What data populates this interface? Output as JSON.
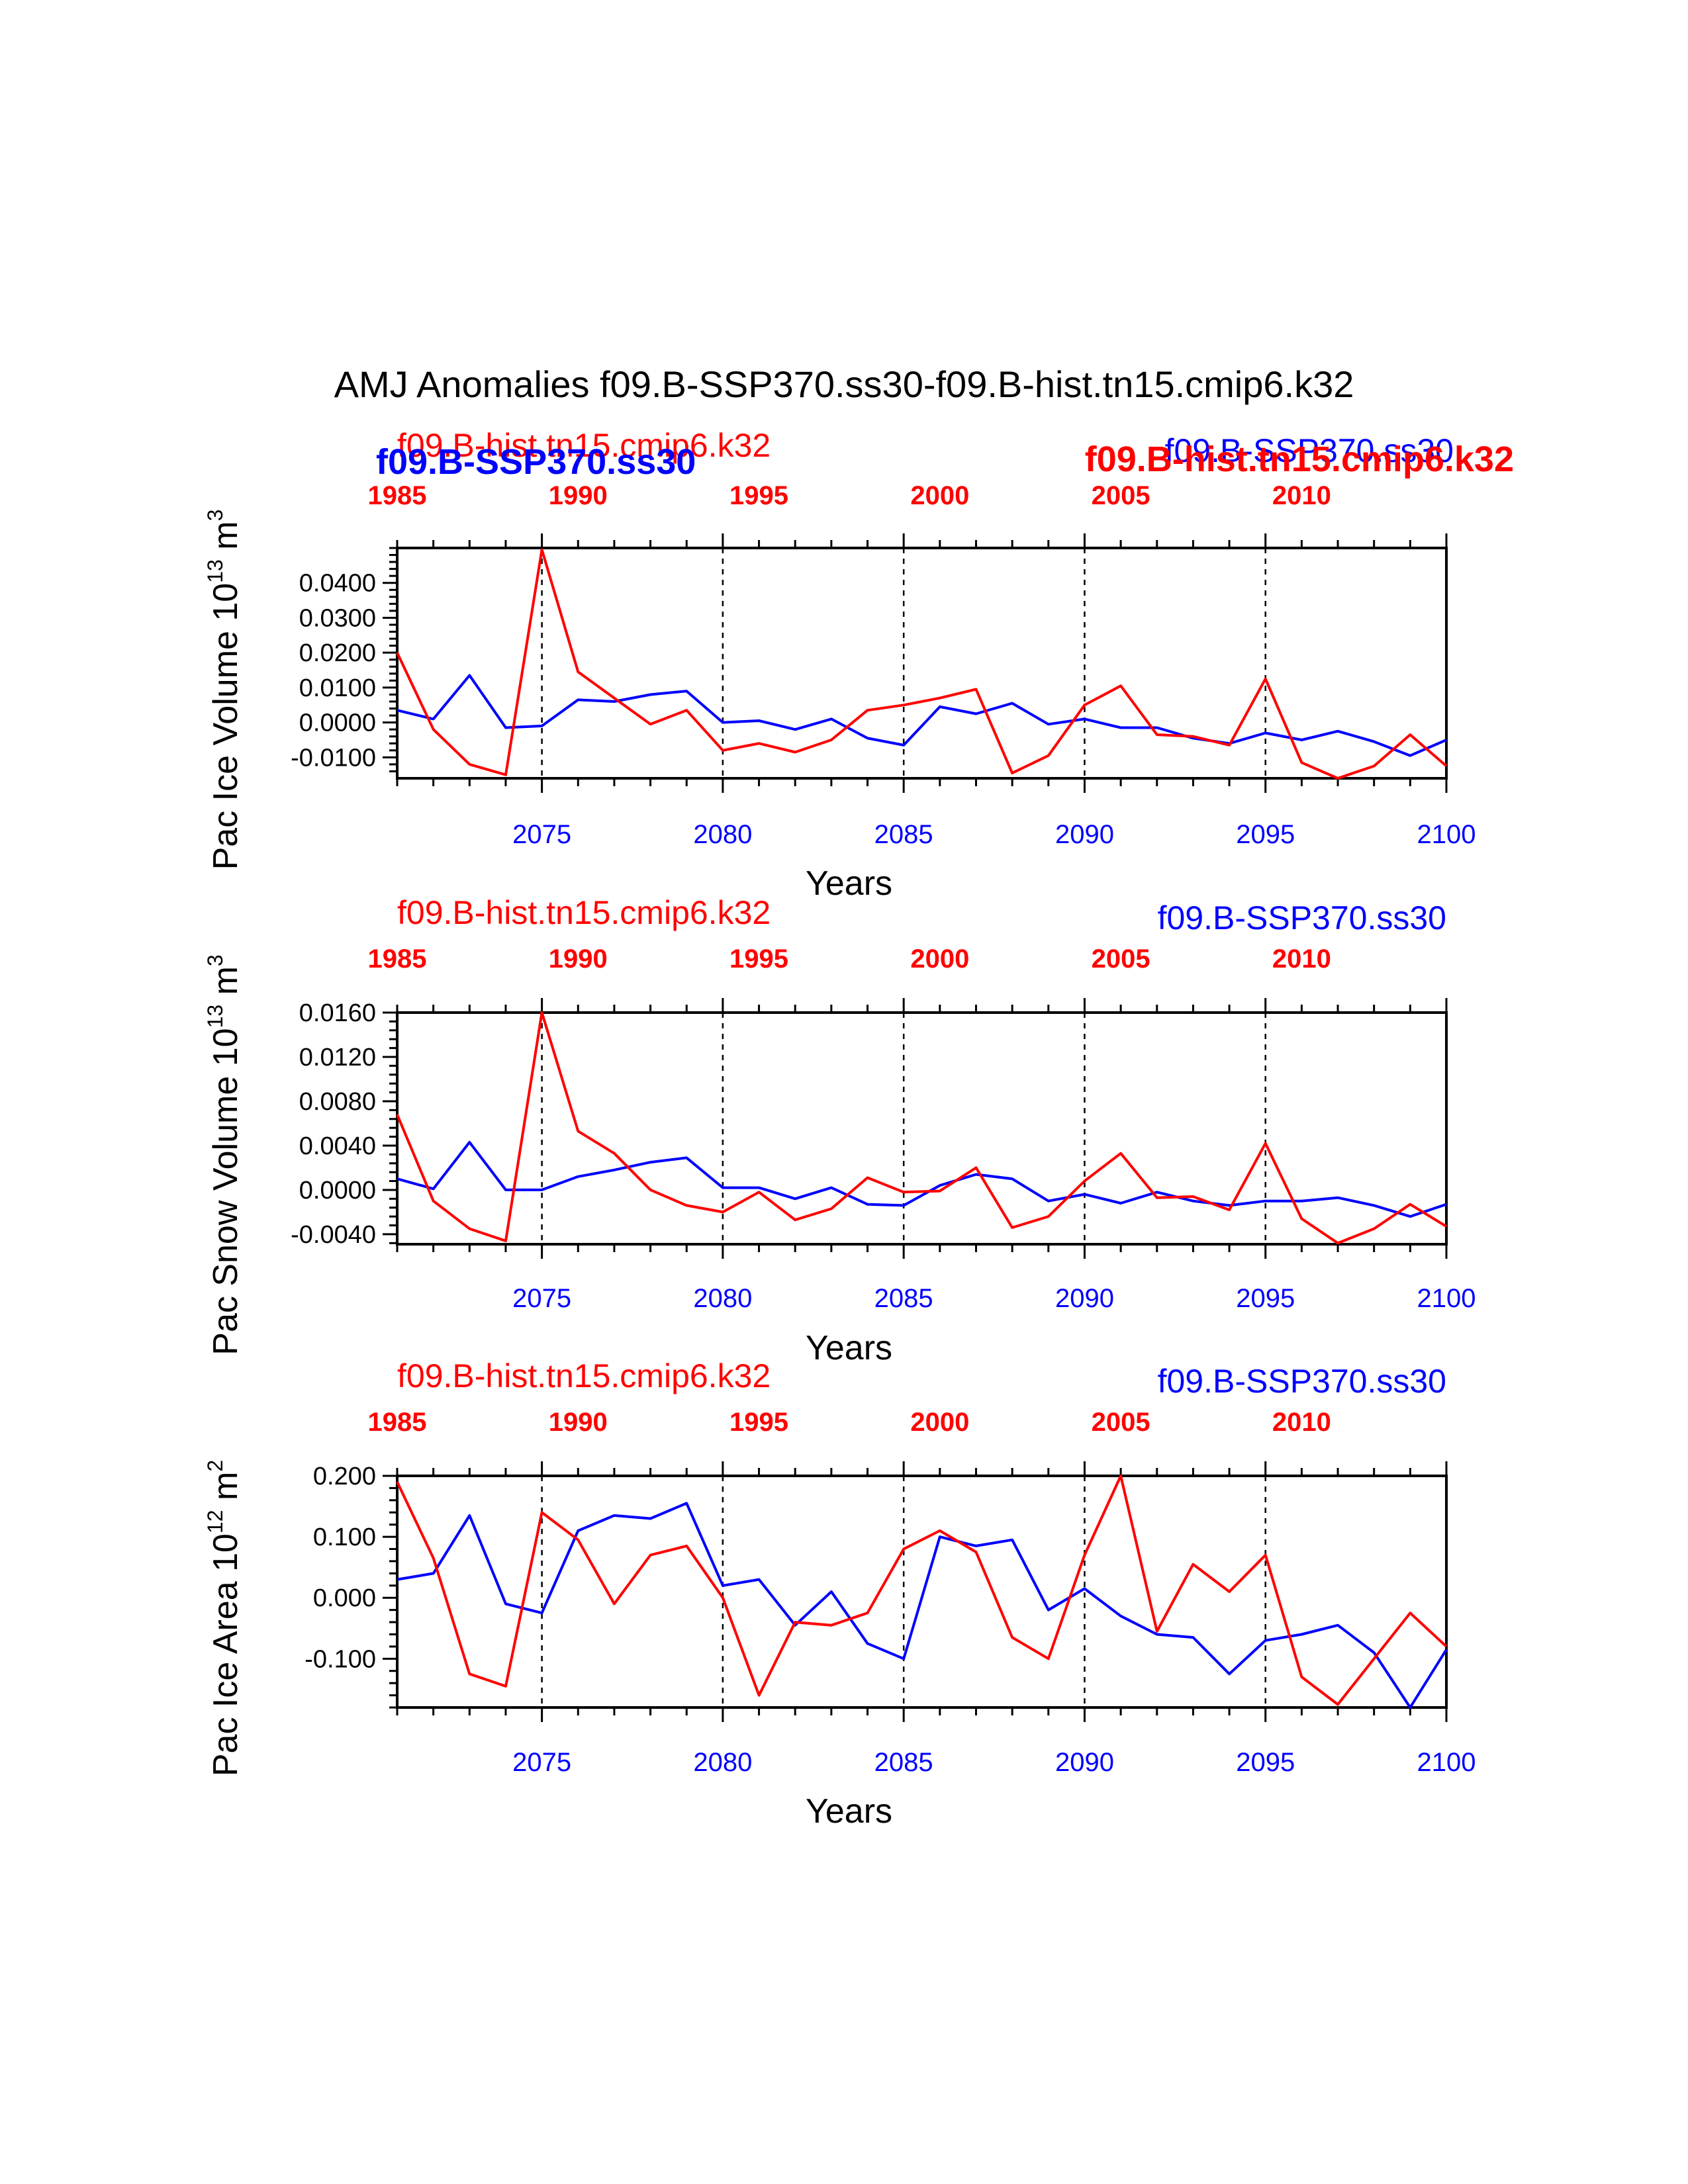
{
  "figure_title": "AMJ Anomalies f09.B-SSP370.ss30-f09.B-hist.tn15.cmip6.k32",
  "overlay_labels": {
    "left_red": "f09.B-hist.tn15.cmip6.k32",
    "left_blue": "f09.B-SSP370.ss30",
    "right_blue": "f09.B-SSP370.ss30",
    "right_red": "f09.B-hist.tn15.cmip6.k32"
  },
  "colors": {
    "ssp370": "#0000ff",
    "hist": "#ff0000",
    "axes": "#000000"
  },
  "chart_data": [
    {
      "type": "line",
      "legend_top_left": "f09.B-hist.tn15.cmip6.k32",
      "legend_top_right": "f09.B-SSP370.ss30",
      "xlabel": "Years",
      "ylabel": "Pac Ice Volume 10",
      "ylabel_exp": "13",
      "ylabel_unit": " m",
      "ylabel_unit_exp": "3",
      "xlim": [
        2071,
        2100
      ],
      "ylim": [
        -0.016,
        0.05
      ],
      "yticks": [
        "0.0400",
        "0.0300",
        "0.0200",
        "0.0100",
        "0.0000",
        "-0.0100"
      ],
      "yticks_values": [
        0.04,
        0.03,
        0.02,
        0.01,
        0.0,
        -0.01
      ],
      "xticks_bottom": [
        "2075",
        "2080",
        "2085",
        "2090",
        "2095",
        "2100"
      ],
      "xticks_top": [
        "1985",
        "1990",
        "1995",
        "2000",
        "2005",
        "2010"
      ],
      "dashed_x": [
        2075,
        2080,
        2085,
        2090,
        2095
      ],
      "x": [
        2071,
        2072,
        2073,
        2074,
        2075,
        2076,
        2077,
        2078,
        2079,
        2080,
        2081,
        2082,
        2083,
        2084,
        2085,
        2086,
        2087,
        2088,
        2089,
        2090,
        2091,
        2092,
        2093,
        2094,
        2095,
        2096,
        2097,
        2098,
        2099,
        2100
      ],
      "series": [
        {
          "name": "f09.B-SSP370.ss30",
          "color": "#0000ff",
          "values": [
            0.0035,
            0.001,
            0.0135,
            -0.0015,
            -0.001,
            0.0065,
            0.006,
            0.008,
            0.009,
            0.0,
            0.0005,
            -0.002,
            0.001,
            -0.0045,
            -0.0065,
            0.0045,
            0.0025,
            0.0055,
            -0.0005,
            0.001,
            -0.0015,
            -0.0015,
            -0.0045,
            -0.006,
            -0.003,
            -0.005,
            -0.0025,
            -0.0055,
            -0.0095,
            -0.005
          ]
        },
        {
          "name": "f09.B-hist.tn15.cmip6.k32",
          "color": "#ff0000",
          "values": [
            0.02,
            -0.002,
            -0.012,
            -0.015,
            0.0495,
            0.0145,
            0.007,
            -0.0005,
            0.0035,
            -0.008,
            -0.006,
            -0.0085,
            -0.005,
            0.0035,
            0.005,
            0.007,
            0.0095,
            -0.0145,
            -0.0095,
            0.005,
            0.0105,
            -0.0035,
            -0.004,
            -0.0065,
            0.0125,
            -0.0115,
            -0.0165,
            -0.0125,
            -0.0035,
            -0.0125
          ]
        }
      ]
    },
    {
      "type": "line",
      "legend_top_left": "f09.B-hist.tn15.cmip6.k32",
      "legend_top_right": "f09.B-SSP370.ss30",
      "xlabel": "Years",
      "ylabel": "Pac Snow Volume 10",
      "ylabel_exp": "13",
      "ylabel_unit": " m",
      "ylabel_unit_exp": "3",
      "xlim": [
        2071,
        2100
      ],
      "ylim": [
        -0.0049,
        0.016
      ],
      "yticks": [
        "0.0160",
        "0.0120",
        "0.0080",
        "0.0040",
        "0.0000",
        "-0.0040"
      ],
      "yticks_values": [
        0.016,
        0.012,
        0.008,
        0.004,
        0.0,
        -0.004
      ],
      "xticks_bottom": [
        "2075",
        "2080",
        "2085",
        "2090",
        "2095",
        "2100"
      ],
      "xticks_top": [
        "1985",
        "1990",
        "1995",
        "2000",
        "2005",
        "2010"
      ],
      "dashed_x": [
        2075,
        2080,
        2085,
        2090,
        2095
      ],
      "x": [
        2071,
        2072,
        2073,
        2074,
        2075,
        2076,
        2077,
        2078,
        2079,
        2080,
        2081,
        2082,
        2083,
        2084,
        2085,
        2086,
        2087,
        2088,
        2089,
        2090,
        2091,
        2092,
        2093,
        2094,
        2095,
        2096,
        2097,
        2098,
        2099,
        2100
      ],
      "series": [
        {
          "name": "f09.B-SSP370.ss30",
          "color": "#0000ff",
          "values": [
            0.001,
            0.0001,
            0.0043,
            0.0,
            0.0,
            0.0012,
            0.0018,
            0.0025,
            0.0029,
            0.0002,
            0.0002,
            -0.0008,
            0.0002,
            -0.0013,
            -0.0014,
            0.0004,
            0.0014,
            0.001,
            -0.001,
            -0.0004,
            -0.0012,
            -0.0002,
            -0.001,
            -0.0014,
            -0.001,
            -0.001,
            -0.0007,
            -0.0014,
            -0.0024,
            -0.0013
          ]
        },
        {
          "name": "f09.B-hist.tn15.cmip6.k32",
          "color": "#ff0000",
          "values": [
            0.0068,
            -0.001,
            -0.0035,
            -0.0046,
            0.016,
            0.0053,
            0.0033,
            0.0,
            -0.0014,
            -0.002,
            -0.0002,
            -0.0027,
            -0.0017,
            0.0011,
            -0.0002,
            -0.0001,
            0.002,
            -0.0034,
            -0.0024,
            0.0008,
            0.0033,
            -0.0007,
            -0.0006,
            -0.0018,
            0.0042,
            -0.0026,
            -0.0048,
            -0.0035,
            -0.0013,
            -0.0033
          ]
        }
      ]
    },
    {
      "type": "line",
      "legend_top_left": "f09.B-hist.tn15.cmip6.k32",
      "legend_top_right": "f09.B-SSP370.ss30",
      "xlabel": "Years",
      "ylabel": "Pac Ice Area 10",
      "ylabel_exp": "12",
      "ylabel_unit": " m",
      "ylabel_unit_exp": "2",
      "xlim": [
        2071,
        2100
      ],
      "ylim": [
        -0.18,
        0.2
      ],
      "yticks": [
        "0.200",
        "0.100",
        "0.000",
        "-0.100"
      ],
      "yticks_values": [
        0.2,
        0.1,
        0.0,
        -0.1
      ],
      "xticks_bottom": [
        "2075",
        "2080",
        "2085",
        "2090",
        "2095",
        "2100"
      ],
      "xticks_top": [
        "1985",
        "1990",
        "1995",
        "2000",
        "2005",
        "2010"
      ],
      "dashed_x": [
        2075,
        2080,
        2085,
        2090,
        2095
      ],
      "x": [
        2071,
        2072,
        2073,
        2074,
        2075,
        2076,
        2077,
        2078,
        2079,
        2080,
        2081,
        2082,
        2083,
        2084,
        2085,
        2086,
        2087,
        2088,
        2089,
        2090,
        2091,
        2092,
        2093,
        2094,
        2095,
        2096,
        2097,
        2098,
        2099,
        2100
      ],
      "series": [
        {
          "name": "f09.B-SSP370.ss30",
          "color": "#0000ff",
          "values": [
            0.03,
            0.04,
            0.135,
            -0.01,
            -0.025,
            0.11,
            0.135,
            0.13,
            0.155,
            0.02,
            0.03,
            -0.045,
            0.01,
            -0.075,
            -0.1,
            0.1,
            0.085,
            0.095,
            -0.02,
            0.015,
            -0.03,
            -0.06,
            -0.065,
            -0.125,
            -0.07,
            -0.06,
            -0.045,
            -0.09,
            -0.18,
            -0.085
          ]
        },
        {
          "name": "f09.B-hist.tn15.cmip6.k32",
          "color": "#ff0000",
          "values": [
            0.19,
            0.065,
            -0.125,
            -0.145,
            0.14,
            0.095,
            -0.01,
            0.07,
            0.085,
            0.0,
            -0.16,
            -0.04,
            -0.045,
            -0.025,
            0.08,
            0.11,
            0.075,
            -0.065,
            -0.1,
            0.07,
            0.2,
            -0.055,
            0.055,
            0.01,
            0.07,
            -0.13,
            -0.175,
            -0.1,
            -0.025,
            -0.08
          ]
        }
      ]
    }
  ]
}
